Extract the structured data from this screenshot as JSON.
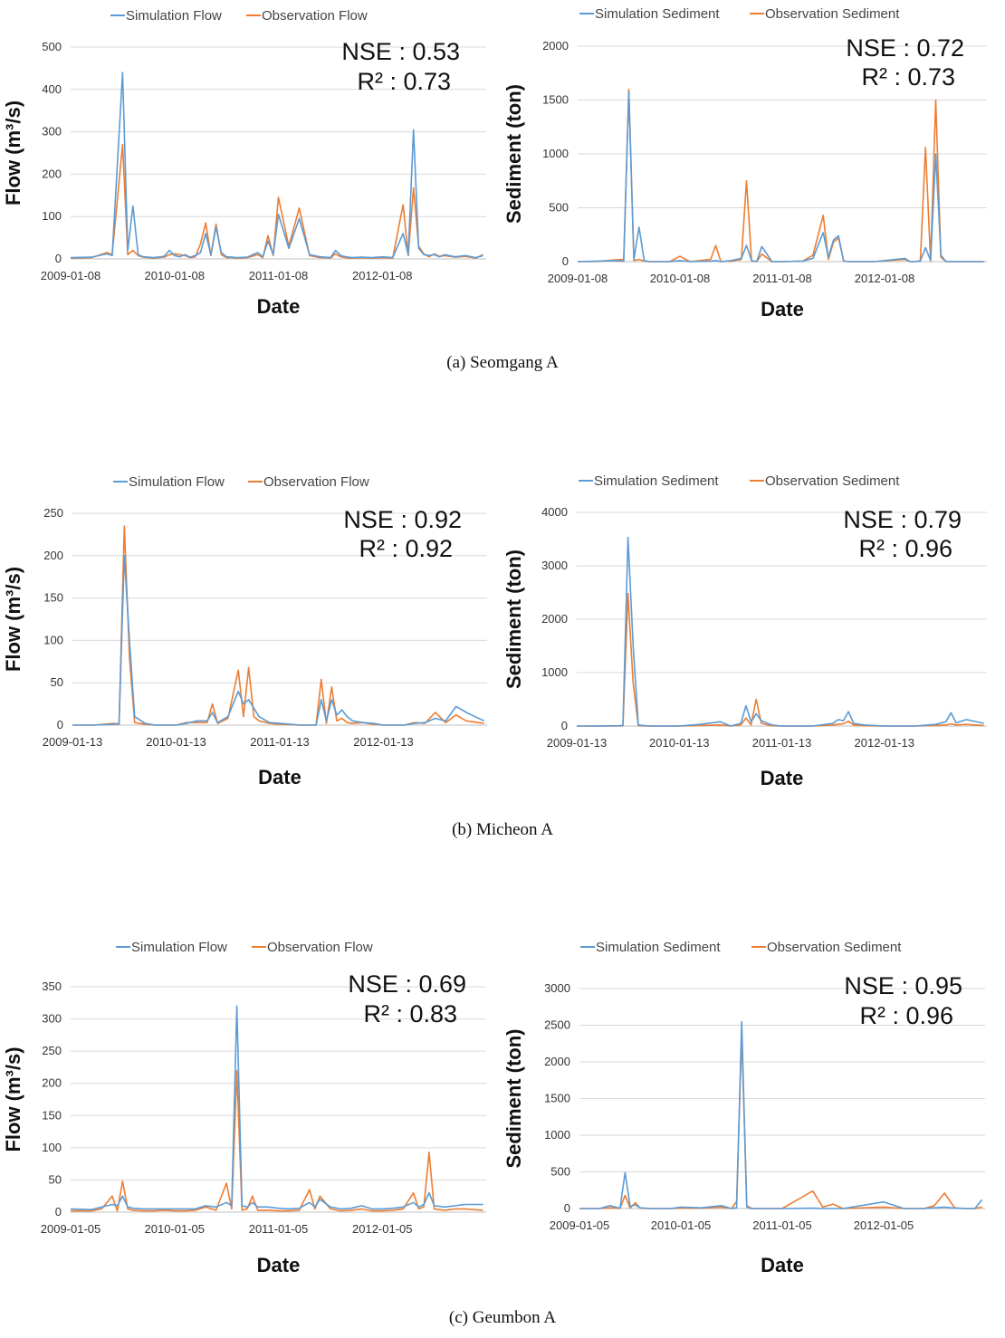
{
  "captions": [
    "(a)  Seomgang  A",
    "(b)  Micheon  A",
    "(c)  Geumbon  A"
  ],
  "colors": {
    "simulation": "#5b9bd5",
    "observation": "#ed7d31"
  },
  "chart_data": [
    {
      "type": "line",
      "site": "Seomgang A",
      "ylabel": "Flow (m³/s)",
      "xlabel": "Date",
      "ylim": [
        0,
        500
      ],
      "yticks": [
        "0",
        "100",
        "200",
        "300",
        "400",
        "500"
      ],
      "xticks": [
        "2009-01-08",
        "2010-01-08",
        "2011-01-08",
        "2012-01-08"
      ],
      "nse": "NSE : 0.53",
      "r2": "R² : 0.73",
      "x": [
        0,
        0.2,
        0.35,
        0.4,
        0.5,
        0.55,
        0.6,
        0.65,
        0.7,
        0.8,
        0.9,
        0.95,
        1.0,
        1.05,
        1.1,
        1.15,
        1.2,
        1.25,
        1.3,
        1.35,
        1.4,
        1.45,
        1.5,
        1.55,
        1.6,
        1.7,
        1.8,
        1.85,
        1.9,
        1.95,
        2.0,
        2.1,
        2.2,
        2.3,
        2.4,
        2.45,
        2.5,
        2.55,
        2.6,
        2.65,
        2.7,
        2.8,
        2.9,
        3.0,
        3.1,
        3.2,
        3.25,
        3.3,
        3.35,
        3.4,
        3.45,
        3.5,
        3.55,
        3.6,
        3.7,
        3.8,
        3.9,
        3.97
      ],
      "series": [
        {
          "name": "Simulation Flow",
          "values": [
            3,
            4,
            12,
            8,
            440,
            20,
            125,
            10,
            5,
            3,
            6,
            20,
            8,
            5,
            10,
            4,
            8,
            15,
            60,
            10,
            75,
            15,
            5,
            4,
            3,
            4,
            15,
            5,
            42,
            10,
            105,
            25,
            95,
            10,
            5,
            4,
            3,
            20,
            8,
            5,
            3,
            4,
            3,
            5,
            3,
            60,
            10,
            305,
            25,
            10,
            8,
            10,
            5,
            10,
            5,
            8,
            3,
            8
          ]
        },
        {
          "name": "Observation Flow",
          "values": [
            2,
            3,
            15,
            10,
            270,
            10,
            20,
            8,
            4,
            2,
            4,
            10,
            12,
            10,
            8,
            3,
            5,
            35,
            85,
            8,
            82,
            10,
            3,
            3,
            2,
            3,
            10,
            3,
            55,
            8,
            145,
            30,
            120,
            8,
            3,
            3,
            2,
            12,
            5,
            3,
            2,
            3,
            2,
            3,
            2,
            128,
            8,
            168,
            30,
            12,
            5,
            12,
            6,
            8,
            4,
            6,
            2,
            10
          ]
        }
      ]
    },
    {
      "type": "line",
      "site": "Seomgang A",
      "ylabel": "Sediment (ton)",
      "xlabel": "Date",
      "ylim": [
        0,
        2000
      ],
      "yticks": [
        "0",
        "500",
        "1000",
        "1500",
        "2000"
      ],
      "xticks": [
        "2009-01-08",
        "2010-01-08",
        "2011-01-08",
        "2012-01-08"
      ],
      "nse": "NSE : 0.72",
      "r2": "R² : 0.73",
      "x": [
        0,
        0.2,
        0.35,
        0.45,
        0.5,
        0.55,
        0.6,
        0.65,
        0.7,
        0.9,
        1.0,
        1.1,
        1.3,
        1.35,
        1.4,
        1.5,
        1.6,
        1.65,
        1.7,
        1.75,
        1.8,
        1.9,
        2.0,
        2.2,
        2.3,
        2.4,
        2.45,
        2.5,
        2.55,
        2.6,
        2.65,
        2.7,
        2.9,
        3.2,
        3.25,
        3.3,
        3.35,
        3.4,
        3.45,
        3.5,
        3.55,
        3.6,
        3.7,
        3.8,
        3.97
      ],
      "series": [
        {
          "name": "Simulation Sediment",
          "values": [
            0,
            5,
            10,
            5,
            1580,
            20,
            320,
            10,
            0,
            0,
            10,
            0,
            5,
            10,
            0,
            10,
            30,
            150,
            10,
            0,
            140,
            0,
            0,
            5,
            30,
            270,
            40,
            200,
            240,
            5,
            0,
            0,
            0,
            30,
            0,
            0,
            5,
            130,
            10,
            1000,
            60,
            0,
            0,
            0,
            0
          ]
        },
        {
          "name": "Observation Sediment",
          "values": [
            0,
            2,
            15,
            20,
            1600,
            10,
            20,
            5,
            0,
            0,
            50,
            0,
            20,
            150,
            0,
            5,
            20,
            750,
            5,
            0,
            70,
            0,
            0,
            5,
            60,
            430,
            20,
            180,
            220,
            5,
            0,
            0,
            0,
            20,
            0,
            0,
            10,
            1060,
            5,
            1500,
            40,
            0,
            0,
            0,
            0
          ]
        }
      ]
    },
    {
      "type": "line",
      "site": "Micheon A",
      "ylabel": "Flow (m³/s)",
      "xlabel": "Date",
      "ylim": [
        0,
        250
      ],
      "yticks": [
        "0",
        "50",
        "100",
        "150",
        "200",
        "250"
      ],
      "xticks": [
        "2009-01-13",
        "2010-01-13",
        "2011-01-13",
        "2012-01-13"
      ],
      "nse": "NSE : 0.92",
      "r2": "R² : 0.92",
      "x": [
        0,
        0.2,
        0.4,
        0.45,
        0.5,
        0.55,
        0.6,
        0.7,
        0.8,
        0.9,
        1.0,
        1.1,
        1.2,
        1.3,
        1.35,
        1.4,
        1.5,
        1.6,
        1.65,
        1.7,
        1.75,
        1.8,
        1.9,
        2.0,
        2.2,
        2.35,
        2.4,
        2.45,
        2.5,
        2.55,
        2.6,
        2.65,
        2.7,
        2.8,
        2.9,
        3.0,
        3.2,
        3.3,
        3.4,
        3.5,
        3.6,
        3.7,
        3.8,
        3.97
      ],
      "series": [
        {
          "name": "Simulation Flow",
          "values": [
            0,
            0,
            1,
            2,
            200,
            100,
            10,
            2,
            0,
            0,
            0,
            2,
            5,
            5,
            15,
            3,
            10,
            40,
            25,
            30,
            20,
            10,
            3,
            2,
            0,
            0,
            30,
            5,
            30,
            12,
            18,
            10,
            5,
            3,
            2,
            0,
            0,
            2,
            3,
            8,
            5,
            22,
            15,
            5
          ]
        },
        {
          "name": "Observation Flow",
          "values": [
            0,
            0,
            2,
            1,
            235,
            80,
            3,
            1,
            0,
            0,
            0,
            3,
            3,
            3,
            25,
            2,
            8,
            65,
            10,
            68,
            10,
            5,
            2,
            1,
            0,
            0,
            54,
            2,
            45,
            5,
            8,
            3,
            2,
            3,
            1,
            0,
            0,
            3,
            2,
            15,
            3,
            12,
            5,
            2
          ]
        }
      ]
    },
    {
      "type": "line",
      "site": "Micheon A",
      "ylabel": "Sediment (ton)",
      "xlabel": "Date",
      "ylim": [
        0,
        4000
      ],
      "yticks": [
        "0",
        "1000",
        "2000",
        "3000",
        "4000"
      ],
      "xticks": [
        "2009-01-13",
        "2010-01-13",
        "2011-01-13",
        "2012-01-13"
      ],
      "nse": "NSE : 0.79",
      "r2": "R² : 0.96",
      "x": [
        0,
        0.2,
        0.4,
        0.45,
        0.5,
        0.55,
        0.6,
        0.7,
        0.8,
        1.0,
        1.2,
        1.4,
        1.5,
        1.6,
        1.65,
        1.7,
        1.75,
        1.8,
        1.9,
        2.0,
        2.3,
        2.5,
        2.55,
        2.6,
        2.65,
        2.7,
        2.8,
        3.0,
        3.3,
        3.5,
        3.6,
        3.65,
        3.7,
        3.8,
        3.97
      ],
      "series": [
        {
          "name": "Simulation Sediment",
          "values": [
            0,
            0,
            5,
            10,
            3530,
            1500,
            20,
            0,
            0,
            0,
            30,
            80,
            0,
            50,
            380,
            80,
            230,
            100,
            20,
            0,
            0,
            50,
            120,
            100,
            270,
            50,
            20,
            0,
            0,
            30,
            80,
            250,
            60,
            120,
            50
          ]
        },
        {
          "name": "Observation Sediment",
          "values": [
            0,
            0,
            2,
            3,
            2480,
            800,
            5,
            0,
            0,
            0,
            10,
            20,
            0,
            20,
            150,
            20,
            500,
            50,
            5,
            0,
            0,
            20,
            30,
            40,
            90,
            20,
            5,
            0,
            0,
            10,
            20,
            40,
            20,
            30,
            10
          ]
        }
      ]
    },
    {
      "type": "line",
      "site": "Geumbon A",
      "ylabel": "Flow (m³/s)",
      "xlabel": "Date",
      "ylim": [
        0,
        350
      ],
      "yticks": [
        "0",
        "50",
        "100",
        "150",
        "200",
        "250",
        "300",
        "350"
      ],
      "xticks": [
        "2009-01-05",
        "2010-01-05",
        "2011-01-05",
        "2012-01-05"
      ],
      "nse": "NSE : 0.69",
      "r2": "R² : 0.83",
      "x": [
        0,
        0.2,
        0.3,
        0.4,
        0.45,
        0.5,
        0.55,
        0.6,
        0.7,
        0.8,
        0.9,
        1.0,
        1.1,
        1.2,
        1.3,
        1.4,
        1.5,
        1.55,
        1.6,
        1.65,
        1.7,
        1.75,
        1.8,
        1.9,
        2.0,
        2.1,
        2.2,
        2.3,
        2.35,
        2.4,
        2.5,
        2.6,
        2.7,
        2.8,
        2.9,
        3.0,
        3.1,
        3.2,
        3.3,
        3.35,
        3.4,
        3.45,
        3.5,
        3.6,
        3.7,
        3.8,
        3.97
      ],
      "series": [
        {
          "name": "Simulation Flow",
          "values": [
            5,
            4,
            8,
            12,
            10,
            25,
            8,
            6,
            5,
            5,
            5,
            5,
            5,
            5,
            10,
            8,
            15,
            10,
            320,
            10,
            8,
            15,
            8,
            8,
            6,
            5,
            6,
            15,
            8,
            20,
            8,
            5,
            6,
            10,
            5,
            5,
            6,
            8,
            15,
            8,
            12,
            30,
            10,
            8,
            10,
            12,
            12
          ]
        },
        {
          "name": "Observation Flow",
          "values": [
            2,
            2,
            5,
            25,
            2,
            48,
            5,
            3,
            2,
            2,
            3,
            2,
            2,
            3,
            8,
            3,
            45,
            5,
            220,
            3,
            5,
            25,
            3,
            3,
            2,
            2,
            3,
            35,
            5,
            25,
            5,
            2,
            3,
            5,
            2,
            2,
            3,
            5,
            30,
            5,
            8,
            93,
            5,
            3,
            5,
            5,
            3
          ]
        }
      ]
    },
    {
      "type": "line",
      "site": "Geumbon A",
      "ylabel": "Sediment (ton)",
      "xlabel": "Date",
      "ylim": [
        0,
        3000
      ],
      "yticks": [
        "0",
        "500",
        "1000",
        "1500",
        "2000",
        "2500",
        "3000"
      ],
      "xticks": [
        "2009-01-05",
        "2010-01-05",
        "2011-01-05",
        "2012-01-05"
      ],
      "nse": "NSE : 0.95",
      "r2": "R² : 0.96",
      "x": [
        0,
        0.2,
        0.3,
        0.4,
        0.45,
        0.5,
        0.55,
        0.6,
        0.7,
        0.9,
        1.0,
        1.2,
        1.4,
        1.5,
        1.55,
        1.6,
        1.65,
        1.7,
        2.0,
        2.3,
        2.4,
        2.5,
        2.6,
        3.0,
        3.2,
        3.4,
        3.5,
        3.6,
        3.7,
        3.8,
        3.9,
        3.97
      ],
      "series": [
        {
          "name": "Simulation Sediment",
          "values": [
            0,
            0,
            40,
            5,
            490,
            30,
            50,
            10,
            0,
            0,
            20,
            10,
            40,
            0,
            10,
            2550,
            20,
            0,
            0,
            5,
            0,
            0,
            0,
            90,
            0,
            0,
            10,
            20,
            5,
            0,
            0,
            120
          ]
        },
        {
          "name": "Observation Sediment",
          "values": [
            0,
            0,
            10,
            2,
            180,
            5,
            80,
            5,
            0,
            0,
            5,
            5,
            20,
            0,
            100,
            2380,
            40,
            0,
            0,
            240,
            20,
            60,
            0,
            20,
            0,
            0,
            40,
            210,
            10,
            0,
            0,
            20
          ]
        }
      ]
    }
  ]
}
